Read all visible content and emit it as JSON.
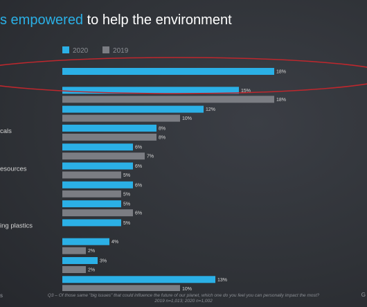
{
  "title": {
    "accent_text": "ss empowered",
    "rest_text": " to help the environment"
  },
  "colors": {
    "series_2020": "#2bb0e6",
    "series_2019": "#7b7d83",
    "highlight": "#c0272d"
  },
  "chart_data": {
    "type": "bar",
    "orientation": "horizontal",
    "categories": [
      "",
      "",
      "",
      "cals",
      "",
      "esources",
      "",
      "",
      "ing plastics",
      "",
      "",
      ""
    ],
    "series": [
      {
        "name": "2020",
        "values": [
          18,
          15,
          12,
          8,
          6,
          6,
          6,
          5,
          5,
          4,
          3,
          13
        ]
      },
      {
        "name": "2019",
        "values": [
          null,
          18,
          10,
          8,
          7,
          5,
          5,
          6,
          null,
          2,
          2,
          10
        ]
      }
    ],
    "value_suffix": "%",
    "legend": "top-left",
    "grid": false,
    "highlighted_category_index": 0
  },
  "footnote": {
    "line1": "Q3 – Of those same \"big issues\" that could influence the future of our planet, which one do you feel you can personally impact the most?",
    "line2": "2019 n=1,013; 2020 n=1,002"
  },
  "corner": {
    "left": "s",
    "right": "G"
  }
}
